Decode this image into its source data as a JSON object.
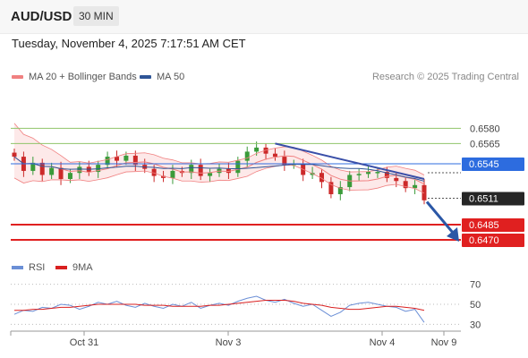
{
  "header": {
    "symbol": "AUD/USD",
    "interval": "30 MIN",
    "datetime": "Tuesday, November 4, 2025 7:17:51 AM CET"
  },
  "legend": {
    "ma20_label": "MA 20 + Bollinger Bands",
    "ma50_label": "MA 50",
    "credit": "Research © 2025 Trading Central"
  },
  "rsi_legend": {
    "rsi_label": "RSI",
    "ma9_label": "9MA"
  },
  "colors": {
    "ma20": "#f08080",
    "bollinger_fill": "#fde4e4",
    "ma50": "#2f5597",
    "level_green": "#8fc46a",
    "level_blue": "#2d6cdf",
    "level_red": "#e02020",
    "candle_up": "#3a9b3a",
    "candle_down": "#cc2a2a",
    "trendline": "#3a4fa8",
    "arrow": "#2b57a6",
    "rsi": "#6b8fd6",
    "rsi_ma": "#d92020"
  },
  "chart_data": {
    "type": "line",
    "title": "AUD/USD",
    "interval": "30 MIN",
    "x_tick_labels": [
      "Oct 31",
      "Nov 3",
      "Nov 4",
      "Nov 9"
    ],
    "ylim": [
      0.6462,
      0.6598
    ],
    "levels": [
      {
        "value": 0.658,
        "label": "0.6580",
        "color": "green"
      },
      {
        "value": 0.6565,
        "label": "0.6565",
        "color": "green"
      },
      {
        "value": 0.6545,
        "label": "0.6545",
        "color": "blue"
      },
      {
        "value": 0.6511,
        "label": "0.6511",
        "color": "dark",
        "current_price": true
      },
      {
        "value": 0.6485,
        "label": "0.6485",
        "color": "red"
      },
      {
        "value": 0.647,
        "label": "0.6470",
        "color": "red"
      }
    ],
    "price_path": [
      0.6552,
      0.6538,
      0.6546,
      0.6534,
      0.6541,
      0.653,
      0.6536,
      0.6542,
      0.6537,
      0.6544,
      0.6552,
      0.6548,
      0.6553,
      0.6544,
      0.654,
      0.6533,
      0.6531,
      0.6538,
      0.6536,
      0.6544,
      0.6533,
      0.6536,
      0.654,
      0.6536,
      0.6548,
      0.6557,
      0.6561,
      0.6555,
      0.6552,
      0.6544,
      0.6545,
      0.6534,
      0.6536,
      0.6527,
      0.6515,
      0.6522,
      0.6534,
      0.6535,
      0.6537,
      0.6537,
      0.6531,
      0.6528,
      0.6521,
      0.6524,
      0.6509
    ],
    "trendline": {
      "from": 0.6565,
      "to": 0.653
    },
    "projection": {
      "from": 0.6511,
      "to": 0.647
    },
    "rsi": {
      "ylim": [
        25,
        75
      ],
      "levels": [
        70,
        50,
        30
      ],
      "values": [
        40,
        44,
        43,
        47,
        46,
        50,
        49,
        45,
        48,
        52,
        50,
        53,
        49,
        47,
        51,
        48,
        46,
        50,
        48,
        52,
        46,
        49,
        51,
        49,
        53,
        56,
        58,
        54,
        52,
        55,
        51,
        48,
        50,
        44,
        38,
        42,
        49,
        51,
        52,
        50,
        48,
        47,
        43,
        45,
        32
      ],
      "ma9": [
        44,
        44,
        45,
        45,
        46,
        47,
        47,
        48,
        49,
        50,
        50,
        50,
        50,
        50,
        49,
        49,
        49,
        48,
        48,
        48,
        48,
        49,
        49,
        50,
        51,
        52,
        53,
        54,
        54,
        54,
        53,
        51,
        50,
        49,
        47,
        46,
        45,
        45,
        46,
        47,
        48,
        48,
        47,
        46,
        44
      ]
    }
  }
}
